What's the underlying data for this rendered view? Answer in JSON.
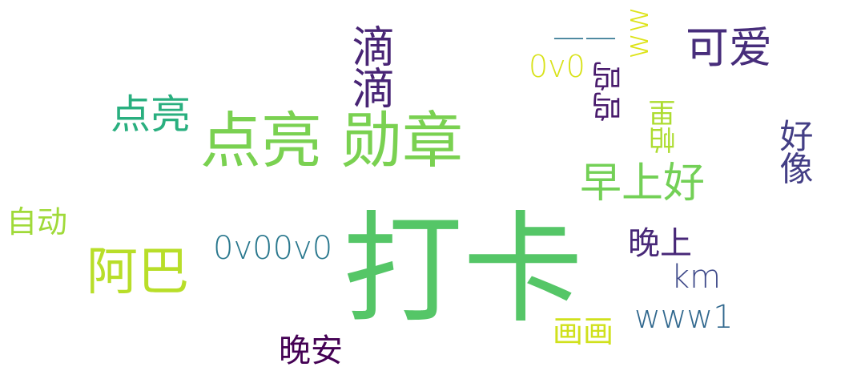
{
  "words": [
    {
      "key": "daka",
      "text": "打卡",
      "color": "#55c667"
    },
    {
      "key": "dianliang_xunzhang",
      "text": "点亮 勋章",
      "color": "#7ad151"
    },
    {
      "key": "dianliang",
      "text": "点亮",
      "color": "#29af7f"
    },
    {
      "key": "aba",
      "text": "阿巴",
      "color": "#b8de29"
    },
    {
      "key": "zidong",
      "text": "自动",
      "color": "#a0da39"
    },
    {
      "key": "didi",
      "text": "滴滴",
      "color": "#482475"
    },
    {
      "key": "keai",
      "text": "可爱",
      "color": "#472d7b"
    },
    {
      "key": "zaoshanghao",
      "text": "早上好",
      "color": "#73d056"
    },
    {
      "key": "dash",
      "text": "——",
      "color": "#2c728e"
    },
    {
      "key": "ww",
      "text": "ww",
      "color": "#dde318"
    },
    {
      "key": "ovo",
      "text": "0v0",
      "color": "#d8e219"
    },
    {
      "key": "wuwu",
      "text": "呜呜",
      "color": "#481a6c"
    },
    {
      "key": "palei",
      "text": "帕里",
      "color": "#addc30"
    },
    {
      "key": "haoxiang",
      "text": "好像",
      "color": "#433e85"
    },
    {
      "key": "wanshang",
      "text": "晚上",
      "color": "#482878"
    },
    {
      "key": "ovoovo",
      "text": "0v00v0",
      "color": "#2a788e"
    },
    {
      "key": "km",
      "text": "km",
      "color": "#3e4989"
    },
    {
      "key": "www1",
      "text": "www1",
      "color": "#31688e"
    },
    {
      "key": "huahua",
      "text": "画画",
      "color": "#d0e11c"
    },
    {
      "key": "wanan",
      "text": "晚安",
      "color": "#440154"
    }
  ]
}
